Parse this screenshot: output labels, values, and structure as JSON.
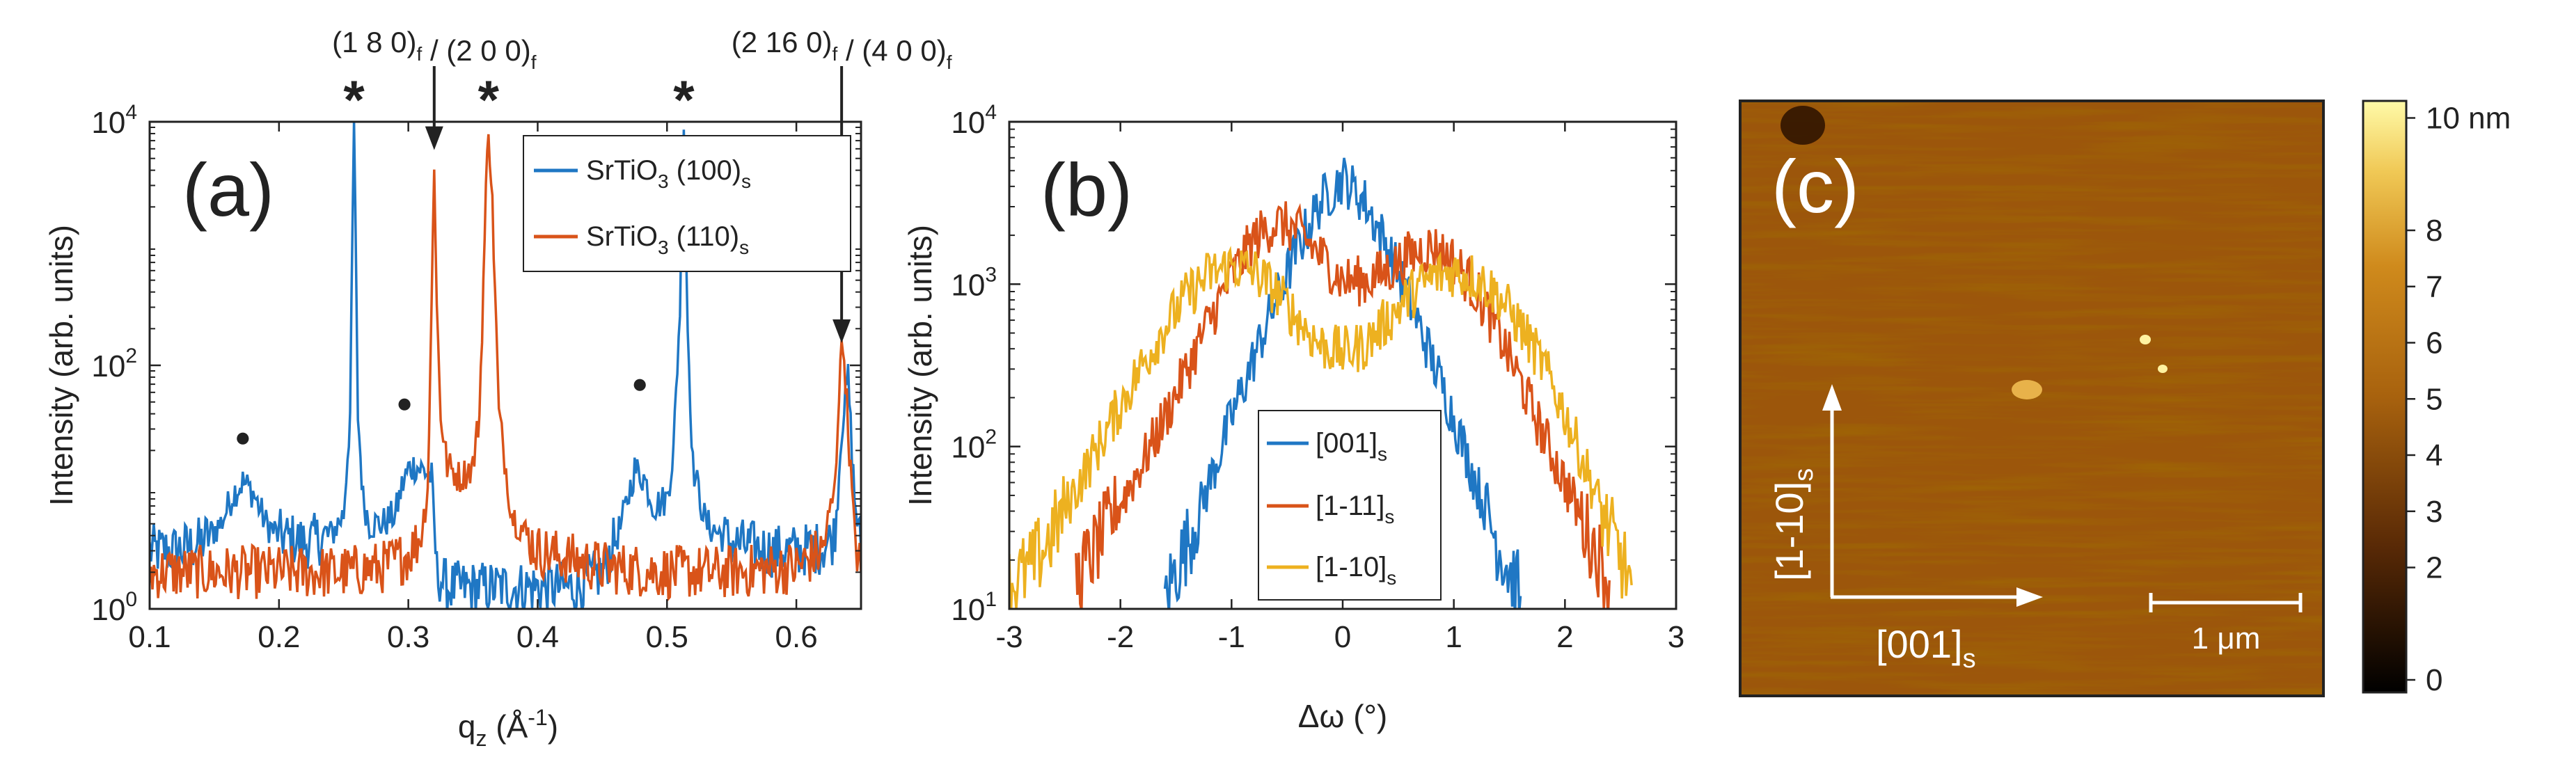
{
  "chart_data": [
    {
      "panel": "(a)",
      "type": "line",
      "xlabel": "q",
      "xlabel_sub": "z",
      "xlabel_unit": " (Å",
      "xlabel_unit_sup": "-1",
      "xlabel_close": ")",
      "ylabel": "Intensity (arb. units)",
      "yscale": "log",
      "xlim": [
        0.1,
        0.65
      ],
      "ylim": [
        1,
        10000
      ],
      "xticks": [
        "0.1",
        "0.2",
        "0.3",
        "0.4",
        "0.5",
        "0.6"
      ],
      "xtick_values": [
        0.1,
        0.2,
        0.3,
        0.4,
        0.5,
        0.6
      ],
      "yticks": [
        {
          "base": "10",
          "exp": "0",
          "value": 1
        },
        {
          "base": "10",
          "exp": "2",
          "value": 100
        },
        {
          "base": "10",
          "exp": "4",
          "value": 10000
        }
      ],
      "series": [
        {
          "name": "SrTiO",
          "name_sub": "3",
          "name_suffix": " (100)",
          "name_suffix_sub": "s",
          "color": "#1f77c4",
          "x": [
            0.1,
            0.12,
            0.14,
            0.155,
            0.165,
            0.172,
            0.18,
            0.19,
            0.2,
            0.22,
            0.24,
            0.25,
            0.255,
            0.258,
            0.261,
            0.265,
            0.27,
            0.28,
            0.29,
            0.295,
            0.3,
            0.305,
            0.31,
            0.315,
            0.318,
            0.322,
            0.33,
            0.35,
            0.37,
            0.4,
            0.43,
            0.45,
            0.465,
            0.475,
            0.482,
            0.49,
            0.5,
            0.505,
            0.51,
            0.513,
            0.516,
            0.52,
            0.53,
            0.55,
            0.58,
            0.6,
            0.62,
            0.63,
            0.635,
            0.64,
            0.645,
            0.65
          ],
          "y": [
            3,
            3,
            3.5,
            5,
            9,
            11,
            9,
            5,
            4,
            3.5,
            4,
            6,
            40,
            10000,
            40,
            8,
            5,
            5,
            6,
            10,
            14,
            15,
            14,
            13,
            12,
            2,
            1.5,
            1.5,
            1.5,
            1.5,
            1.5,
            2,
            5,
            14,
            12,
            7,
            8,
            20,
            300,
            10000,
            200,
            15,
            5,
            3.5,
            3,
            3,
            3.2,
            4,
            30,
            80,
            8,
            3
          ]
        },
        {
          "name": "SrTiO",
          "name_sub": "3",
          "name_suffix": " (110)",
          "name_suffix_sub": "s",
          "color": "#d95319",
          "x": [
            0.1,
            0.15,
            0.2,
            0.25,
            0.28,
            0.3,
            0.31,
            0.315,
            0.318,
            0.32,
            0.322,
            0.325,
            0.33,
            0.34,
            0.35,
            0.355,
            0.36,
            0.362,
            0.365,
            0.37,
            0.38,
            0.4,
            0.45,
            0.5,
            0.55,
            0.6,
            0.62,
            0.63,
            0.634,
            0.637,
            0.64,
            0.645,
            0.65
          ],
          "y": [
            2,
            2,
            2,
            2,
            2.2,
            2.8,
            4,
            10,
            300,
            5000,
            300,
            40,
            15,
            12,
            15,
            40,
            2500,
            10000,
            2000,
            40,
            6,
            3,
            2.2,
            2,
            2,
            2.2,
            3,
            10,
            120,
            130,
            30,
            4,
            2
          ]
        }
      ],
      "annotations": [
        {
          "text": "*",
          "x": 0.258,
          "y": 16000
        },
        {
          "text": "*",
          "x": 0.362,
          "y": 16000
        },
        {
          "text": "*",
          "x": 0.513,
          "y": 16000
        },
        {
          "text": "●",
          "x": 0.172,
          "y": 20
        },
        {
          "text": "●",
          "x": 0.297,
          "y": 38
        },
        {
          "text": "●",
          "x": 0.479,
          "y": 55
        }
      ],
      "arrows": [
        {
          "label_parts": [
            [
              "(1 8 0)",
              "f"
            ],
            [
              " / (2 0 0)",
              "f"
            ]
          ],
          "x": 0.32,
          "y": 5000
        },
        {
          "label_parts": [
            [
              "(2 16 0)",
              "f"
            ],
            [
              " / (4 0 0)",
              "f"
            ]
          ],
          "x": 0.635,
          "y": 130
        }
      ]
    },
    {
      "panel": "(b)",
      "type": "line",
      "xlabel": "Δω (°)",
      "ylabel": "Intensity (arb. units)",
      "yscale": "log",
      "xlim": [
        -3,
        3
      ],
      "ylim": [
        10,
        10000
      ],
      "xticks": [
        "-3",
        "-2",
        "-1",
        "0",
        "1",
        "2",
        "3"
      ],
      "xtick_values": [
        -3,
        -2,
        -1,
        0,
        1,
        2,
        3
      ],
      "yticks": [
        {
          "base": "10",
          "exp": "1",
          "value": 10
        },
        {
          "base": "10",
          "exp": "2",
          "value": 100
        },
        {
          "base": "10",
          "exp": "3",
          "value": 1000
        },
        {
          "base": "10",
          "exp": "4",
          "value": 10000
        }
      ],
      "series": [
        {
          "name": "[001]",
          "name_sub": "s",
          "color": "#1f77c4",
          "x": [
            -1.6,
            -1.4,
            -1.2,
            -1.0,
            -0.8,
            -0.6,
            -0.4,
            -0.2,
            0.0,
            0.2,
            0.4,
            0.6,
            0.8,
            1.0,
            1.2,
            1.4,
            1.6
          ],
          "y": [
            12,
            25,
            60,
            150,
            350,
            800,
            1700,
            3200,
            4500,
            3200,
            1700,
            800,
            350,
            150,
            60,
            25,
            12
          ]
        },
        {
          "name": "[1-11]",
          "name_sub": "s",
          "color": "#d95319",
          "x": [
            -2.4,
            -2.2,
            -2.0,
            -1.8,
            -1.6,
            -1.4,
            -1.2,
            -1.0,
            -0.8,
            -0.6,
            -0.4,
            -0.2,
            0.0,
            0.2,
            0.4,
            0.6,
            0.8,
            1.0,
            1.2,
            1.4,
            1.6,
            1.8,
            2.0,
            2.2,
            2.4
          ],
          "y": [
            15,
            25,
            45,
            80,
            150,
            300,
            600,
            1100,
            1900,
            2400,
            2100,
            1500,
            1050,
            1050,
            1200,
            1500,
            1700,
            1400,
            900,
            500,
            250,
            120,
            60,
            30,
            15
          ]
        },
        {
          "name": "[1-10]",
          "name_sub": "s",
          "color": "#edb120",
          "x": [
            -3.0,
            -2.8,
            -2.6,
            -2.4,
            -2.2,
            -2.0,
            -1.8,
            -1.6,
            -1.4,
            -1.2,
            -1.0,
            -0.8,
            -0.6,
            -0.4,
            -0.2,
            0.0,
            0.2,
            0.4,
            0.6,
            0.8,
            1.0,
            1.2,
            1.4,
            1.6,
            1.8,
            2.0,
            2.2,
            2.4,
            2.6
          ],
          "y": [
            14,
            18,
            30,
            55,
            100,
            180,
            320,
            550,
            850,
            1150,
            1300,
            1200,
            900,
            600,
            420,
            380,
            420,
            600,
            850,
            1100,
            1200,
            1100,
            850,
            550,
            320,
            160,
            70,
            30,
            14
          ]
        }
      ]
    },
    {
      "panel": "(c)",
      "type": "heatmap",
      "colorbar_ticks": [
        {
          "label": "0",
          "value": 0
        },
        {
          "label": "2",
          "value": 2
        },
        {
          "label": "3",
          "value": 3
        },
        {
          "label": "4",
          "value": 4
        },
        {
          "label": "5",
          "value": 5
        },
        {
          "label": "6",
          "value": 6
        },
        {
          "label": "7",
          "value": 7
        },
        {
          "label": "8",
          "value": 8
        },
        {
          "label": "10 nm",
          "value": 10
        }
      ],
      "colorbar_range": [
        0,
        10
      ],
      "axis_vertical": "[1-10]",
      "axis_vertical_sub": "s",
      "axis_horizontal": "[001]",
      "axis_horizontal_sub": "s",
      "scalebar": "1 μm",
      "colors": [
        "#000000",
        "#5a2a06",
        "#a8620e",
        "#cf8a1c",
        "#f0c855",
        "#fffaa8"
      ]
    }
  ]
}
